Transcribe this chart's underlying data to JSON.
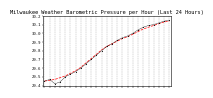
{
  "title": "Milwaukee Weather Barometric Pressure per Hour (Last 24 Hours)",
  "background_color": "#ffffff",
  "plot_bg_color": "#ffffff",
  "grid_color": "#aaaaaa",
  "x_values": [
    0,
    1,
    2,
    3,
    4,
    5,
    6,
    7,
    8,
    9,
    10,
    11,
    12,
    13,
    14,
    15,
    16,
    17,
    18,
    19,
    20,
    21,
    22,
    23,
    24
  ],
  "y_values": [
    29.45,
    29.47,
    29.42,
    29.44,
    29.5,
    29.53,
    29.56,
    29.6,
    29.65,
    29.7,
    29.75,
    29.8,
    29.85,
    29.88,
    29.92,
    29.95,
    29.97,
    30.0,
    30.04,
    30.07,
    30.09,
    30.1,
    30.12,
    30.14,
    30.15
  ],
  "y_avg": [
    29.45,
    29.46,
    29.47,
    29.49,
    29.51,
    29.54,
    29.57,
    29.61,
    29.66,
    29.71,
    29.76,
    29.81,
    29.85,
    29.88,
    29.91,
    29.94,
    29.96,
    29.99,
    30.02,
    30.05,
    30.07,
    30.09,
    30.11,
    30.13,
    30.14
  ],
  "ylim": [
    29.4,
    30.2
  ],
  "ytick_values": [
    29.4,
    29.5,
    29.6,
    29.7,
    29.8,
    29.9,
    30.0,
    30.1,
    30.2
  ],
  "ytick_labels": [
    "29.4",
    "29.5",
    "29.6",
    "29.7",
    "29.8",
    "29.9",
    "30.0",
    "30.1",
    "30.2"
  ],
  "marker_color": "#000000",
  "line_color": "#ff0000",
  "title_fontsize": 3.8,
  "tick_fontsize": 2.8,
  "grid_linestyle": "--",
  "grid_linewidth": 0.3,
  "marker_size": 0.8,
  "line_width": 0.5,
  "scatter_size": 0.6
}
